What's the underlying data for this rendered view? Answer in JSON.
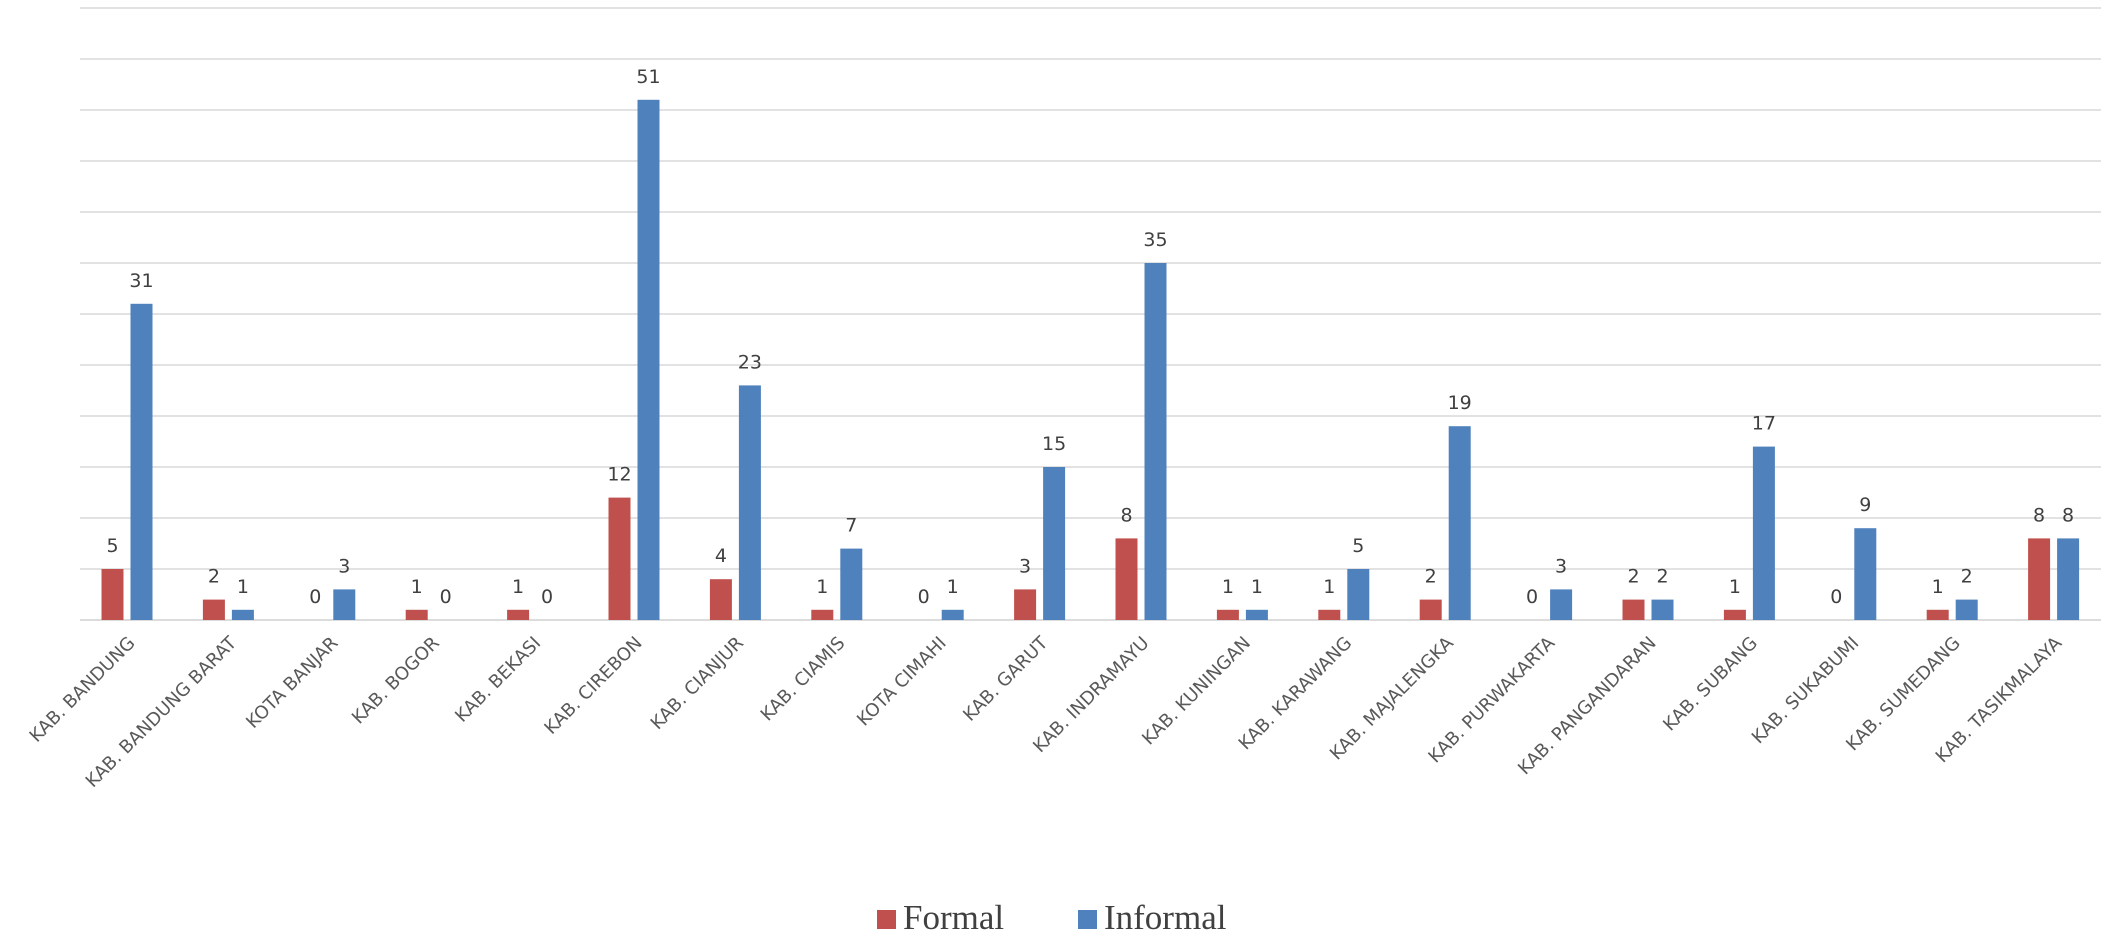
{
  "chart_data": {
    "type": "bar",
    "title": "",
    "xlabel": "",
    "ylabel": "",
    "ylim": [
      0,
      60
    ],
    "grid": true,
    "legend_position": "bottom",
    "categories": [
      "KAB. BANDUNG",
      "KAB. BANDUNG BARAT",
      "KOTA BANJAR",
      "KAB. BOGOR",
      "KAB. BEKASI",
      "KAB. CIREBON",
      "KAB. CIANJUR",
      "KAB. CIAMIS",
      "KOTA CIMAHI",
      "KAB. GARUT",
      "KAB. INDRAMAYU",
      "KAB. KUNINGAN",
      "KAB. KARAWANG",
      "KAB. MAJALENGKA",
      "KAB. PURWAKARTA",
      "KAB. PANGANDARAN",
      "KAB. SUBANG",
      "KAB. SUKABUMI",
      "KAB. SUMEDANG",
      "KAB. TASIKMALAYA"
    ],
    "series": [
      {
        "name": "Formal",
        "color": "#c0504d",
        "values": [
          5,
          2,
          0,
          1,
          1,
          12,
          4,
          1,
          0,
          3,
          8,
          1,
          1,
          2,
          0,
          2,
          1,
          0,
          1,
          8
        ]
      },
      {
        "name": "Informal",
        "color": "#4f81bd",
        "values": [
          31,
          1,
          3,
          0,
          0,
          51,
          23,
          7,
          1,
          15,
          35,
          1,
          5,
          19,
          3,
          2,
          17,
          9,
          2,
          8
        ]
      }
    ]
  }
}
